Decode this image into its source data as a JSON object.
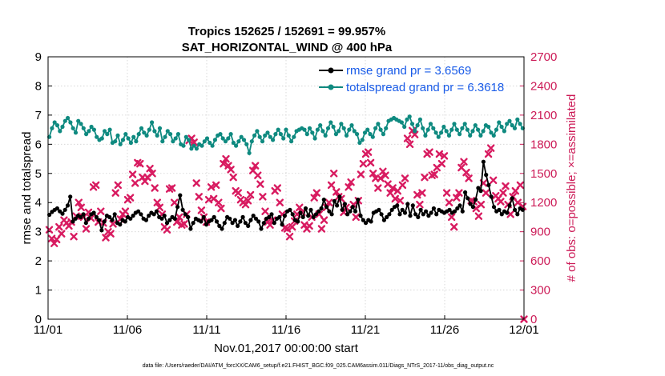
{
  "chart_data": {
    "type": "line",
    "title_line1": "Tropics 152625 / 152691 = 99.957%",
    "title_line2": "SAT_HORIZONTAL_WIND @ 400 hPa",
    "xlabel": "Nov.01,2017 00:00:00 start",
    "ylabel_left": "rmse and totalspread",
    "ylabel_right": "# of obs: o=possible; ×=assimilated",
    "x_ticks": [
      "11/01",
      "11/06",
      "11/11",
      "11/16",
      "11/21",
      "11/26",
      "12/01"
    ],
    "x_tick_days": [
      0,
      5,
      10,
      15,
      20,
      25,
      30
    ],
    "xlim": [
      0,
      30
    ],
    "ylim_left": [
      0,
      9
    ],
    "y_ticks_left": [
      "0",
      "1",
      "2",
      "3",
      "4",
      "5",
      "6",
      "7",
      "8",
      "9"
    ],
    "ylim_right": [
      0,
      2700
    ],
    "y_ticks_right": [
      "0",
      "300",
      "600",
      "900",
      "1200",
      "1500",
      "1800",
      "2100",
      "2400",
      "2700"
    ],
    "grid": true,
    "legend_position": "top-right",
    "colors": {
      "rmse": "#000000",
      "spread": "#0f8a80",
      "obs": "#d81b60",
      "right_axis": "#cc1b57",
      "legend_text": "#1a5ce8"
    },
    "series": [
      {
        "name": "rmse grand pr = 3.6569",
        "key": "rmse",
        "values": [
          3.58,
          3.68,
          3.75,
          3.8,
          3.7,
          3.62,
          3.75,
          3.9,
          4.2,
          3.35,
          3.45,
          3.55,
          3.5,
          3.6,
          3.3,
          3.45,
          3.6,
          3.65,
          3.5,
          3.4,
          3.05,
          3.35,
          3.55,
          3.5,
          3.4,
          3.6,
          3.3,
          3.25,
          3.4,
          3.35,
          3.5,
          3.45,
          3.55,
          3.65,
          3.7,
          3.6,
          3.45,
          3.4,
          3.55,
          3.65,
          3.6,
          3.7,
          3.5,
          3.45,
          3.55,
          3.3,
          3.4,
          3.5,
          3.45,
          3.85,
          4.25,
          3.75,
          3.6,
          3.5,
          3.1,
          3.3,
          3.45,
          3.4,
          3.35,
          3.5,
          3.25,
          3.35,
          3.4,
          3.5,
          3.35,
          3.2,
          3.1,
          3.3,
          3.5,
          3.45,
          3.3,
          3.4,
          3.2,
          3.35,
          3.5,
          3.3,
          3.2,
          3.4,
          3.55,
          3.45,
          3.35,
          3.1,
          3.3,
          3.45,
          3.5,
          3.6,
          3.3,
          3.45,
          3.5,
          3.25,
          3.55,
          3.7,
          3.75,
          3.6,
          3.4,
          3.35,
          3.65,
          3.5,
          3.8,
          3.55,
          3.75,
          3.5,
          3.6,
          3.7,
          3.8,
          4.1,
          3.85,
          3.7,
          3.6,
          4.05,
          3.9,
          4.2,
          3.75,
          3.95,
          3.6,
          3.7,
          3.85,
          3.7,
          4.1,
          3.55,
          3.4,
          3.3,
          3.4,
          3.35,
          3.65,
          3.7,
          3.75,
          3.6,
          3.4,
          3.5,
          3.6,
          3.75,
          3.85,
          3.9,
          3.6,
          3.75,
          3.65,
          3.95,
          3.55,
          3.9,
          3.6,
          3.5,
          3.75,
          3.6,
          3.7,
          3.55,
          3.65,
          3.8,
          3.6,
          3.75,
          3.7,
          3.65,
          3.7,
          3.75,
          3.65,
          3.7,
          3.8,
          3.9,
          3.7,
          4.35,
          4.15,
          3.95,
          3.85,
          4.1,
          4.5,
          4.4,
          5.4,
          4.95,
          4.6,
          4.2,
          3.85,
          3.7,
          3.75,
          3.6,
          3.7,
          3.65,
          3.9,
          4.15,
          3.75,
          3.6,
          3.8,
          3.75
        ]
      },
      {
        "name": "totalspread grand pr = 6.3618",
        "key": "spread",
        "values": [
          6.25,
          6.55,
          6.75,
          6.65,
          6.45,
          6.6,
          6.8,
          6.9,
          6.75,
          6.55,
          6.4,
          6.8,
          6.7,
          6.55,
          6.35,
          6.45,
          6.6,
          6.5,
          6.25,
          6.15,
          6.2,
          6.45,
          6.35,
          6.5,
          6.05,
          6.1,
          6.3,
          6.0,
          6.15,
          6.35,
          6.2,
          6.05,
          6.25,
          6.1,
          6.35,
          6.55,
          6.4,
          6.3,
          6.5,
          6.75,
          6.45,
          6.3,
          6.55,
          6.1,
          6.25,
          6.45,
          6.35,
          6.1,
          6.2,
          6.35,
          6.0,
          5.95,
          6.25,
          6.15,
          5.85,
          5.95,
          5.85,
          6.0,
          5.95,
          6.1,
          6.2,
          6.05,
          5.95,
          6.15,
          6.3,
          6.35,
          6.2,
          6.1,
          6.2,
          6.35,
          6.05,
          5.95,
          6.1,
          6.25,
          6.15,
          6.0,
          5.7,
          6.1,
          6.3,
          6.45,
          6.25,
          6.1,
          6.3,
          6.4,
          6.25,
          6.15,
          6.35,
          6.5,
          6.35,
          6.2,
          6.5,
          6.3,
          6.1,
          6.25,
          6.45,
          6.5,
          6.55,
          6.5,
          6.35,
          6.55,
          6.4,
          6.2,
          6.5,
          6.65,
          6.45,
          6.3,
          6.55,
          6.75,
          6.6,
          6.35,
          6.45,
          6.7,
          6.55,
          6.3,
          6.5,
          6.65,
          6.45,
          6.35,
          6.05,
          6.15,
          6.4,
          6.5,
          6.35,
          6.25,
          6.55,
          6.7,
          6.5,
          6.35,
          6.55,
          6.8,
          6.85,
          6.9,
          6.85,
          6.8,
          6.75,
          6.6,
          6.85,
          6.95,
          6.7,
          6.45,
          6.65,
          6.85,
          6.55,
          6.3,
          6.5,
          6.7,
          6.55,
          6.4,
          6.25,
          6.4,
          6.6,
          6.45,
          6.3,
          6.5,
          6.7,
          6.5,
          6.35,
          6.55,
          6.7,
          6.5,
          6.3,
          6.45,
          6.65,
          6.5,
          6.3,
          6.45,
          6.65,
          6.6,
          6.4,
          6.3,
          6.5,
          6.75,
          6.6,
          6.45,
          6.7,
          6.8,
          6.65,
          6.55,
          6.85,
          6.7,
          6.55
        ]
      },
      {
        "name": "obs possible",
        "key": "obs_possible",
        "values": []
      },
      {
        "name": "obs assimilated",
        "key": "obs_assim",
        "values": [
          920,
          830,
          780,
          820,
          950,
          880,
          1020,
          990,
          960,
          1000,
          850,
          1060,
          1200,
          1150,
          1050,
          930,
          1100,
          1040,
          1360,
          1380,
          1000,
          1110,
          990,
          840,
          900,
          880,
          980,
          1300,
          1380,
          1030,
          1080,
          1110,
          1230,
          1250,
          1490,
          1400,
          1610,
          1600,
          1460,
          1420,
          1460,
          1550,
          1500,
          1350,
          1200,
          1150,
          1080,
          950,
          920,
          1340,
          1350,
          1200,
          1000,
          1050,
          970,
          980,
          1080,
          1840,
          1860,
          1820,
          1400,
          1260,
          1120,
          1050,
          1000,
          1230,
          1360,
          1240,
          1380,
          1200,
          1140,
          1600,
          1650,
          1580,
          1540,
          1460,
          1320,
          1300,
          1230,
          1200,
          1180,
          1220,
          1280,
          1530,
          1580,
          1480,
          1390,
          1260,
          1110,
          1000,
          970,
          1020,
          1320,
          1350,
          1200,
          1080,
          940,
          930,
          850,
          950,
          1010,
          1080,
          1150,
          1100,
          970,
          930,
          960,
          1050,
          1250,
          1300,
          1080,
          930,
          1020,
          1150,
          1200,
          1380,
          1500,
          1310,
          1260,
          1240,
          1100,
          1150,
          1360,
          1410,
          1180,
          1050,
          1220,
          1490,
          1600,
          1700,
          1720,
          1610,
          1500,
          1450,
          1350,
          1450,
          1520,
          1480,
          1390,
          1300,
          1350,
          1240,
          1320,
          1220,
          1380,
          1450,
          1860,
          1800,
          1940,
          1900,
          1280,
          1180,
          1300,
          1460,
          1700,
          1720,
          1480,
          1490,
          1560,
          1700,
          1600,
          1680,
          1300,
          1200,
          1050,
          950,
          1250,
          1300,
          1560,
          1620,
          1510,
          1450,
          1220,
          1210,
          1140,
          1060,
          1180,
          1400,
          1300,
          1700,
          1760,
          1430,
          1270,
          1240,
          1210,
          1300,
          1370,
          1180,
          1080,
          1260,
          1320,
          1200,
          1380,
          1160,
          0
        ]
      }
    ]
  },
  "footer_text": "data file: /Users/raeder/DAI/ATM_forcXX/CAM6_setup/f.e21.FHIST_BGC.f09_025.CAM6assim.011/Diags_NTrS_2017-11/obs_diag_output.nc"
}
